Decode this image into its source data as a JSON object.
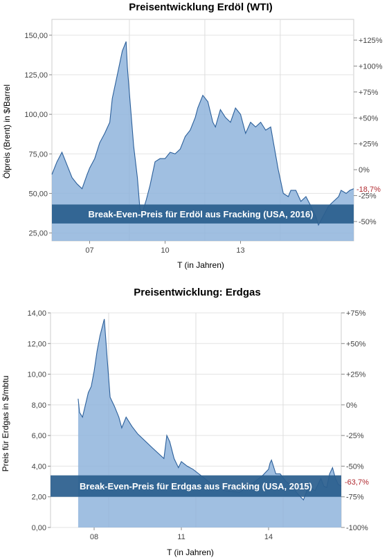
{
  "chart_data": [
    {
      "type": "area",
      "title": "Preisentwicklung Erdöl (WTI)",
      "xlabel": "T (in Jahren)",
      "ylabel": "Ölpreis (Brent) in $/Barrel",
      "x_ticks": [
        "07",
        "10",
        "13"
      ],
      "y_ticks": [
        "25,00",
        "50,00",
        "75,00",
        "100,00",
        "125,00",
        "150,00"
      ],
      "ylim": [
        20,
        160
      ],
      "y2_ticks": [
        "-50%",
        "-25%",
        "0%",
        "+25%",
        "+50%",
        "+75%",
        "+100%",
        "+125%"
      ],
      "last_value_label": "-18,7%",
      "band": {
        "low": 31,
        "high": 43,
        "label": "Break-Even-Preis für Erdöl aus Fracking (USA, 2016)"
      },
      "series": [
        {
          "x": [
            2005.5,
            2005.7,
            2005.9,
            2006.1,
            2006.3,
            2006.5,
            2006.7,
            2006.9,
            2007.0,
            2007.2,
            2007.4,
            2007.6,
            2007.8,
            2007.9,
            2008.1,
            2008.3,
            2008.45,
            2008.5,
            2008.6,
            2008.75,
            2008.9,
            2009.0,
            2009.1,
            2009.25,
            2009.4,
            2009.6,
            2009.8,
            2010.0,
            2010.2,
            2010.4,
            2010.6,
            2010.8,
            2011.0,
            2011.2,
            2011.3,
            2011.5,
            2011.7,
            2011.9,
            2012.0,
            2012.2,
            2012.4,
            2012.6,
            2012.8,
            2013.0,
            2013.2,
            2013.4,
            2013.6,
            2013.8,
            2014.0,
            2014.2,
            2014.5,
            2014.7,
            2014.9,
            2015.0,
            2015.2,
            2015.4,
            2015.6,
            2015.8,
            2016.0,
            2016.1,
            2016.3,
            2016.5,
            2016.7,
            2016.9,
            2017.0,
            2017.2,
            2017.35,
            2017.5
          ],
          "values": [
            62,
            70,
            76,
            68,
            60,
            56,
            53,
            62,
            66,
            72,
            82,
            88,
            95,
            110,
            125,
            140,
            146,
            130,
            110,
            80,
            60,
            40,
            38,
            46,
            55,
            70,
            72,
            72,
            76,
            75,
            78,
            86,
            90,
            98,
            104,
            112,
            108,
            95,
            92,
            103,
            98,
            95,
            104,
            100,
            88,
            95,
            92,
            95,
            90,
            92,
            65,
            50,
            48,
            52,
            52,
            45,
            48,
            42,
            35,
            30,
            36,
            42,
            45,
            48,
            52,
            50,
            52,
            53
          ]
        }
      ]
    },
    {
      "type": "area",
      "title": "Preisentwicklung: Erdgas",
      "xlabel": "T (in Jahren)",
      "ylabel": "Preis für Erdgas in $/mbtu",
      "x_ticks": [
        "08",
        "11",
        "14"
      ],
      "y_ticks": [
        "0,00",
        "2,00",
        "4,00",
        "6,00",
        "8,00",
        "10,00",
        "12,00",
        "14,00"
      ],
      "ylim": [
        0,
        14
      ],
      "y2_ticks": [
        "-100%",
        "-75%",
        "-50%",
        "-25%",
        "0%",
        "+25%",
        "+50%",
        "+75%"
      ],
      "last_value_label": "-63,7%",
      "band": {
        "low": 2.0,
        "high": 3.4,
        "label": "Break-Even-Preis für Erdgas aus Fracking (USA, 2015)"
      },
      "series": [
        {
          "x": [
            2007.45,
            2007.5,
            2007.6,
            2007.7,
            2007.8,
            2007.9,
            2008.0,
            2008.1,
            2008.2,
            2008.35,
            2008.45,
            2008.55,
            2008.7,
            2008.85,
            2008.95,
            2009.1,
            2009.3,
            2009.5,
            2010.0,
            2010.4,
            2010.5,
            2010.6,
            2010.75,
            2010.9,
            2011.0,
            2011.2,
            2011.4,
            2011.6,
            2011.8,
            2012.0,
            2012.2,
            2012.5,
            2013.0,
            2013.4,
            2013.8,
            2014.0,
            2014.05,
            2014.1,
            2014.15,
            2014.25,
            2014.4,
            2014.6,
            2014.8,
            2015.0,
            2015.1,
            2015.2,
            2015.3,
            2015.4,
            2015.5,
            2015.6,
            2015.7,
            2015.8,
            2015.9,
            2016.0,
            2016.1,
            2016.2,
            2016.3,
            2016.4,
            2016.5
          ],
          "values": [
            8.4,
            7.5,
            7.2,
            8.0,
            8.8,
            9.2,
            10.2,
            11.5,
            12.5,
            13.6,
            11.0,
            8.5,
            7.9,
            7.2,
            6.5,
            7.2,
            6.6,
            6.1,
            5.2,
            4.5,
            6.0,
            5.6,
            4.5,
            3.9,
            4.3,
            4.0,
            3.8,
            3.5,
            3.2,
            2.9,
            2.7,
            2.4,
            2.3,
            2.8,
            3.4,
            3.8,
            4.2,
            4.4,
            4.1,
            3.5,
            3.5,
            3.0,
            2.7,
            2.2,
            2.0,
            1.8,
            2.3,
            2.8,
            2.5,
            2.4,
            2.8,
            3.2,
            2.7,
            2.6,
            3.5,
            3.9,
            3.2,
            2.8,
            2.7
          ]
        }
      ]
    }
  ]
}
